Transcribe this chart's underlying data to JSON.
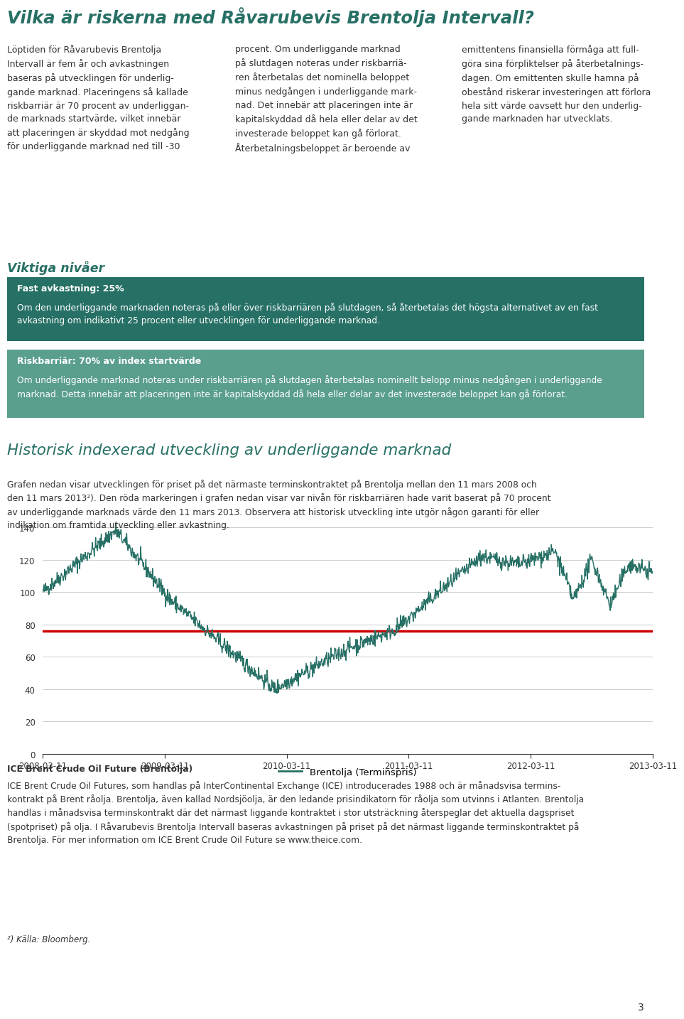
{
  "title": "Vilka är riskerna med Råvarubevis Brentolja Intervall?",
  "title_color": "#277065",
  "body_col1": "Löptiden för Råvarubevis Brentolja\nIntervall är fem år och avkastningen\nbaseras på utvecklingen för underlig-\ngande marknad. Placeringens så kallade\nriskbarriär är 70 procent av underliggan-\nde marknads startvärde, vilket innebär\natt placeringen är skyddad mot nedgång\nför underliggande marknad ned till -30",
  "body_col2": "procent. Om underliggande marknad\npå slutdagen noteras under riskbarriä-\nren återbetalas det nominella beloppet\nminus nedgången i underliggande mark-\nnad. Det innebär att placeringen inte är\nkapitalskyddad då hela eller delar av det\ninvesterade beloppet kan gå förlorat.\nÅterbetalningsbeloppet är beroende av",
  "body_col3": "emittentens finansiella förmåga att full-\ngöra sina förpliktelser på återbetalnings-\ndagen. Om emittenten skulle hamna på\nobestånd riskerar investeringen att förlora\nhela sitt värde oavsett hur den underlig-\ngande marknaden har utvecklats.",
  "section_title": "Viktiga nivåer",
  "section_title_color": "#277065",
  "box1_header": "Fast avkastning: 25%",
  "box1_body": "Om den underliggande marknaden noteras på eller över riskbarriären på slutdagen, så återbetalas det högsta alternativet av en fast\navkastning om indikativt 25 procent eller utvecklingen för underliggande marknad.",
  "box1_color": "#277065",
  "box2_header": "Riskbarriär: 70% av index startvärde",
  "box2_body": "Om underliggande marknad noteras under riskbarriären på slutdagen återbetalas nominellt belopp minus nedgången i underliggande\nmarknad. Detta innebär att placeringen inte är kapitalskyddad då hela eller delar av det investerade beloppet kan gå förlorat.",
  "box2_color": "#5a9e8e",
  "white": "#ffffff",
  "chart_section_title": "Historisk indexerad utveckling av underliggande marknad",
  "chart_section_color": "#277065",
  "chart_desc_line1": "Grafen nedan visar utvecklingen för priset på det närmaste terminskontraktet på Brentolja mellan den 11 mars 2008 och",
  "chart_desc_line2": "den 11 mars 2013²). Den röda markeringen i grafen nedan visar var nivån för riskbarriären hade varit baserat på 70 procent",
  "chart_desc_line3": "av underliggande marknads värde den 11 mars 2013. Observera att historisk utveckling inte utgör någon garanti för eller",
  "chart_desc_line4": "indikation om framtida utveckling eller avkastning.",
  "line_color": "#277065",
  "barrier_color": "#cc0000",
  "barrier_value": 76,
  "legend_label": "Brentolja (Terminspris)",
  "yticks": [
    0,
    20,
    40,
    60,
    80,
    100,
    120,
    140
  ],
  "xtick_labels": [
    "2008-03-11",
    "2009-03-11",
    "2010-03-11",
    "2011-03-11",
    "2012-03-11",
    "2013-03-11"
  ],
  "footer_bold": "ICE Brent Crude Oil Future (Brentolja)",
  "footer_line1": "ICE Brent Crude Oil Futures, som handlas på InterContinental Exchange (ICE) introducerades 1988 och är månadsvisa termins-",
  "footer_line2": "kontrakt på Brent råolja. Brentolja, även kallad Nordsjöolja, är den ledande prisindikatorn för råolja som utvinns i Atlanten. Brentolja",
  "footer_line3": "handlas i månadsvisa terminskontrakt där det närmast liggande kontraktet i stor utsträckning återspeglar det aktuella dagspriset",
  "footer_line4": "(spotpriset) på olja. I Råvarubevis Brentolja Intervall baseras avkastningen på priset på det närmast liggande terminskontraktet på",
  "footer_line5": "Brentolja. För mer information om ICE Brent Crude Oil Future se www.theice.com.",
  "footnote": "²) Källa: Bloomberg.",
  "page_number": "3",
  "bg": "#ffffff",
  "fg": "#333333",
  "grid_color": "#cccccc"
}
